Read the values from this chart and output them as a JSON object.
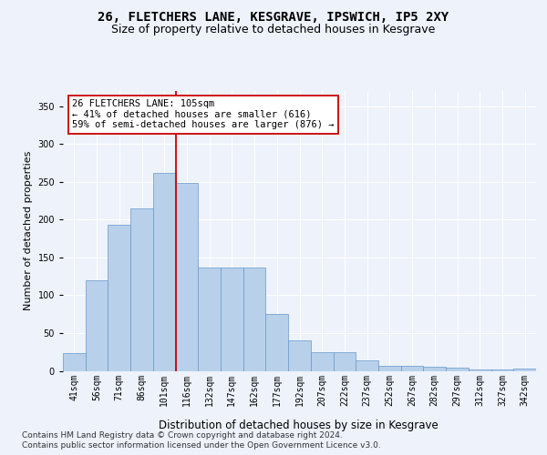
{
  "title1": "26, FLETCHERS LANE, KESGRAVE, IPSWICH, IP5 2XY",
  "title2": "Size of property relative to detached houses in Kesgrave",
  "xlabel": "Distribution of detached houses by size in Kesgrave",
  "ylabel": "Number of detached properties",
  "categories": [
    "41sqm",
    "56sqm",
    "71sqm",
    "86sqm",
    "101sqm",
    "116sqm",
    "132sqm",
    "147sqm",
    "162sqm",
    "177sqm",
    "192sqm",
    "207sqm",
    "222sqm",
    "237sqm",
    "252sqm",
    "267sqm",
    "282sqm",
    "297sqm",
    "312sqm",
    "327sqm",
    "342sqm"
  ],
  "values": [
    23,
    120,
    193,
    215,
    262,
    248,
    136,
    136,
    136,
    75,
    40,
    25,
    25,
    14,
    7,
    7,
    5,
    4,
    2,
    2,
    3
  ],
  "bar_color": "#b8d0ea",
  "bar_edge_color": "#6699cc",
  "vline_x": 4.5,
  "vline_color": "#cc0000",
  "annotation_text": "26 FLETCHERS LANE: 105sqm\n← 41% of detached houses are smaller (616)\n59% of semi-detached houses are larger (876) →",
  "annotation_box_color": "#ffffff",
  "annotation_box_edge": "#cc0000",
  "footnote": "Contains HM Land Registry data © Crown copyright and database right 2024.\nContains public sector information licensed under the Open Government Licence v3.0.",
  "ylim": [
    0,
    370
  ],
  "background_color": "#edf2fb",
  "grid_color": "#ffffff",
  "title1_fontsize": 10,
  "title2_fontsize": 9,
  "xlabel_fontsize": 8.5,
  "ylabel_fontsize": 8,
  "tick_fontsize": 7,
  "footnote_fontsize": 6.5
}
